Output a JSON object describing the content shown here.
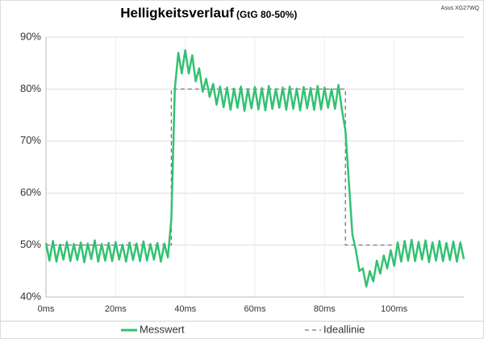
{
  "chart_data": {
    "type": "line",
    "title": "Helligkeitsverlauf",
    "subtitle": "(GtG 80-50%)",
    "note": "Asus XG27WQ",
    "xlim": [
      0,
      120
    ],
    "xticks": [
      {
        "value": 0,
        "label": "0ms"
      },
      {
        "value": 20,
        "label": "20ms"
      },
      {
        "value": 40,
        "label": "40ms"
      },
      {
        "value": 60,
        "label": "60ms"
      },
      {
        "value": 80,
        "label": "80ms"
      },
      {
        "value": 100,
        "label": "100ms"
      }
    ],
    "ylim": [
      40,
      90
    ],
    "yticks": [
      {
        "value": 40,
        "label": "40%"
      },
      {
        "value": 50,
        "label": "50%"
      },
      {
        "value": 60,
        "label": "60%"
      },
      {
        "value": 70,
        "label": "70%"
      },
      {
        "value": 80,
        "label": "80%"
      },
      {
        "value": 90,
        "label": "90%"
      }
    ],
    "grid": true,
    "legend": "bottom",
    "series": [
      {
        "name": "Messwert",
        "color": "#33c172",
        "dash": false,
        "x": [
          0,
          1,
          2,
          3,
          4,
          5,
          6,
          7,
          8,
          9,
          10,
          11,
          12,
          13,
          14,
          15,
          16,
          17,
          18,
          19,
          20,
          21,
          22,
          23,
          24,
          25,
          26,
          27,
          28,
          29,
          30,
          31,
          32,
          33,
          34,
          35,
          36,
          37,
          38,
          39,
          40,
          41,
          42,
          43,
          44,
          45,
          46,
          47,
          48,
          49,
          50,
          51,
          52,
          53,
          54,
          55,
          56,
          57,
          58,
          59,
          60,
          61,
          62,
          63,
          64,
          65,
          66,
          67,
          68,
          69,
          70,
          71,
          72,
          73,
          74,
          75,
          76,
          77,
          78,
          79,
          80,
          81,
          82,
          83,
          84,
          85,
          86,
          87,
          88,
          89,
          90,
          91,
          92,
          93,
          94,
          95,
          96,
          97,
          98,
          99,
          100,
          101,
          102,
          103,
          104,
          105,
          106,
          107,
          108,
          109,
          110,
          111,
          112,
          113,
          114,
          115,
          116,
          117,
          118,
          119,
          120
        ],
        "values": [
          50.4,
          47.0,
          50.8,
          46.8,
          50.1,
          47.2,
          50.6,
          46.9,
          50.2,
          47.1,
          50.5,
          46.7,
          50.3,
          47.3,
          50.9,
          46.8,
          50.2,
          47.0,
          50.4,
          46.9,
          50.6,
          47.2,
          50.1,
          46.8,
          50.5,
          47.1,
          50.3,
          46.9,
          50.7,
          47.0,
          50.2,
          47.2,
          50.4,
          46.8,
          50.3,
          47.6,
          55,
          80,
          87,
          83,
          87.5,
          83,
          86.5,
          81.5,
          84,
          79.5,
          82,
          78.5,
          81,
          77,
          80.5,
          76.5,
          80.3,
          76.0,
          80.1,
          76.4,
          80.5,
          75.8,
          80.0,
          76.3,
          80.4,
          76.1,
          80.2,
          75.9,
          80.6,
          76.2,
          80.0,
          76.4,
          80.3,
          76.0,
          80.5,
          76.2,
          80.1,
          75.9,
          80.4,
          76.3,
          80.2,
          76.0,
          80.6,
          76.1,
          80.3,
          76.4,
          80.0,
          76.2,
          80.8,
          76.0,
          72,
          62,
          52,
          49,
          45,
          45.5,
          42,
          45,
          43,
          47,
          44.5,
          48,
          45.5,
          49,
          46,
          50.5,
          46.8,
          50.8,
          47.0,
          51.0,
          46.9,
          50.6,
          47.2,
          50.9,
          46.7,
          50.5,
          47.0,
          50.8,
          46.9,
          50.4,
          47.1,
          50.7,
          46.8,
          50.5,
          47.3
        ]
      },
      {
        "name": "Ideallinie",
        "color": "#777777",
        "dash": true,
        "x": [
          0,
          36,
          36,
          86,
          86,
          100
        ],
        "values": [
          50,
          50,
          80,
          80,
          50,
          50
        ]
      }
    ]
  }
}
